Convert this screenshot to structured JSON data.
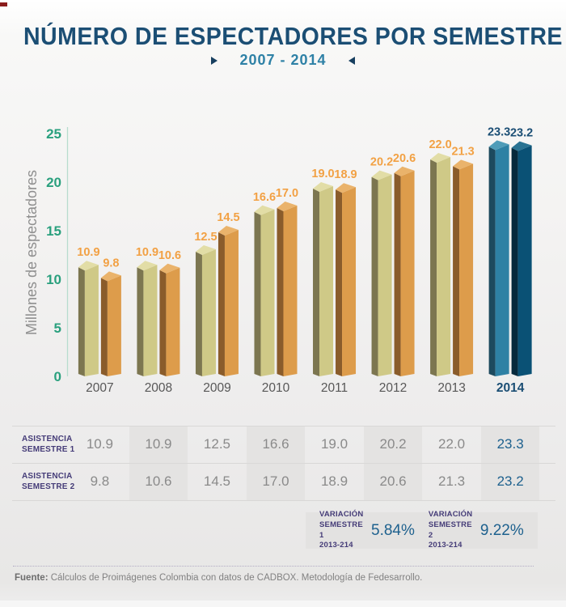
{
  "page": {
    "title": "NÚMERO DE ESPECTADORES POR SEMESTRE",
    "subtitle": "2007 - 2014",
    "footer": {
      "prefix": "Fuente:",
      "text": " Cálculos de Proimágenes Colombia con datos de CADBOX. Metodología de Fedesarrollo."
    }
  },
  "chart_data": {
    "type": "bar",
    "title": "NÚMERO DE ESPECTADORES POR SEMESTRE",
    "subtitle": "2007 - 2014",
    "xlabel": "",
    "ylabel": "Millones de espectadores",
    "ylim": [
      0,
      25
    ],
    "yticks": [
      0,
      5,
      10,
      15,
      20,
      25
    ],
    "grid": false,
    "legend": false,
    "categories": [
      "2007",
      "2008",
      "2009",
      "2010",
      "2011",
      "2012",
      "2013",
      "2014"
    ],
    "series": [
      {
        "name": "Asistencia Semestre 1",
        "values": [
          10.9,
          10.9,
          12.5,
          16.6,
          19.0,
          20.2,
          22.0,
          23.3
        ]
      },
      {
        "name": "Asistencia Semestre 2",
        "values": [
          9.8,
          10.6,
          14.5,
          17.0,
          18.9,
          20.6,
          21.3,
          23.2
        ]
      }
    ],
    "highlight_category": "2014",
    "colors": {
      "s1": {
        "front": "#cfc987",
        "side": "#7c7650",
        "top": "#e2dda6",
        "label": "#f2a144"
      },
      "s2": {
        "front": "#dd9c4b",
        "side": "#8a5c2b",
        "top": "#eab36b",
        "label": "#f2a144"
      },
      "s1_highlight": {
        "front": "#2e81a4",
        "side": "#1d4a5e",
        "top": "#4f9cb8",
        "label": "#1b4e74"
      },
      "s2_highlight": {
        "front": "#0a5175",
        "side": "#06293c",
        "top": "#2a7392",
        "label": "#1b4e74"
      },
      "axis": "#b7dcce",
      "tick_label": "#2aa07e",
      "year_label": "#575757",
      "year_label_highlight": "#1b4e74"
    }
  },
  "table": {
    "shaded_columns": [
      1,
      3,
      5,
      7
    ],
    "rows": [
      {
        "label_lines": [
          "ASISTENCIA",
          "SEMESTRE 1"
        ],
        "values": [
          "10.9",
          "10.9",
          "12.5",
          "16.6",
          "19.0",
          "20.2",
          "22.0",
          "23.3"
        ]
      },
      {
        "label_lines": [
          "ASISTENCIA",
          "SEMESTRE 2"
        ],
        "values": [
          "9.8",
          "10.6",
          "14.5",
          "17.0",
          "18.9",
          "20.6",
          "21.3",
          "23.2"
        ]
      }
    ]
  },
  "variation": {
    "items": [
      {
        "label_lines": [
          "VARIACIÓN",
          "SEMESTRE 1",
          "2013-214"
        ],
        "value": "5.84%"
      },
      {
        "label_lines": [
          "VARIACIÓN",
          "SEMESTRE 2",
          "2013-214"
        ],
        "value": "9.22%"
      }
    ]
  }
}
